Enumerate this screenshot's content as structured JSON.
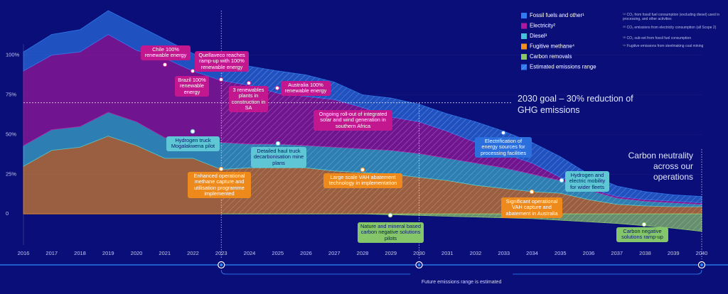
{
  "chart_data": {
    "type": "area",
    "stacked": true,
    "x": [
      2016,
      2017,
      2018,
      2019,
      2020,
      2021,
      2022,
      2023,
      2024,
      2025,
      2026,
      2027,
      2028,
      2029,
      2030,
      2031,
      2032,
      2033,
      2034,
      2035,
      2036,
      2037,
      2038,
      2039,
      2040
    ],
    "xlim": [
      2016,
      2040
    ],
    "xticks": [
      2016,
      2017,
      2018,
      2019,
      2020,
      2021,
      2022,
      2023,
      2024,
      2025,
      2026,
      2027,
      2028,
      2029,
      2030,
      2031,
      2032,
      2033,
      2034,
      2035,
      2036,
      2037,
      2038,
      2039,
      2040
    ],
    "ylim": [
      -12,
      128
    ],
    "yticks": [
      0,
      {
        "value": 25,
        "label": "25%"
      },
      {
        "value": 50,
        "label": "50%"
      },
      {
        "value": 75,
        "label": "75%"
      },
      {
        "value": 100,
        "label": "100%"
      }
    ],
    "series": [
      {
        "name": "Fossil fuels and other¹",
        "color": "#2f7bef",
        "values": [
          12,
          13,
          14,
          15,
          16,
          12,
          11,
          12,
          12,
          14,
          13.5,
          11,
          8,
          12,
          11,
          11,
          13,
          14,
          13,
          13,
          9,
          6.5,
          5,
          4,
          4
        ]
      },
      {
        "name": "Electricity²",
        "color": "#b0189e",
        "values": [
          47,
          47,
          47,
          49,
          45,
          50,
          43,
          39,
          37,
          32,
          31,
          30,
          26,
          21,
          20,
          17,
          13,
          9,
          7,
          2,
          1,
          1,
          1,
          1,
          1
        ]
      },
      {
        "name": "Diesel³",
        "color": "#43c4d6",
        "values": [
          13,
          13,
          13,
          15,
          15,
          13,
          12,
          17,
          15,
          15,
          14,
          15,
          15,
          15,
          15,
          14,
          14,
          13,
          11,
          8,
          6,
          4,
          3,
          2.5,
          1.5
        ]
      },
      {
        "name": "Fugitive methane⁴",
        "color": "#f3901e",
        "values": [
          30,
          40,
          42,
          49,
          43,
          35,
          35,
          28,
          29,
          29,
          29,
          27,
          26,
          25,
          23,
          21,
          18,
          16,
          14,
          13,
          9,
          6,
          5,
          4.5,
          4.5
        ]
      },
      {
        "name": "Carbon removals",
        "color": "#8cc66b",
        "values": [
          null,
          null,
          null,
          null,
          null,
          null,
          null,
          0,
          0,
          0,
          0,
          0,
          0,
          -0.5,
          -1,
          -1.5,
          -2,
          -2.5,
          -3,
          -4,
          -5,
          -6,
          -7.5,
          -9,
          -11
        ]
      }
    ],
    "goal_line": 70,
    "goal_text": "2030 goal – 30% reduction of GHG emissions",
    "neutrality_text": "Carbon neutrality across our operations",
    "estimate_label": "Estimated emissions range",
    "footer": "Future emissions range is estimated",
    "footnotes": [
      "⁽¹⁾ CO₂ from fossil fuel consumption (excluding diesel) used in processing, and other activities",
      "⁽²⁾ CO₂ emissions from electricity consumption (all Scope 2)",
      "⁽³⁾ CO₂ sub-set from fossil fuel consumption",
      "⁽⁴⁾ Fugitive emissions from steelmaking coal mining"
    ],
    "annotations": [
      "Chile 100% renewable energy",
      "Quellaveco reaches ramp-up with 100% renewable energy",
      "Brazil 100% renewable energy",
      "3 renewables plants in construction in SA",
      "Australia 100% renewable energy",
      "Ongoing roll-out of integrated solar and wind generation in southern Africa",
      "Hydrogen truck Mogalakwena pilot",
      "Detailed haul truck decarbonisation mine plans",
      "Electrification of energy sources for processing facilities",
      "Hydrogen and electric mobility for wider fleets",
      "Enhanced operational methane capture and utilisation programme implemented",
      "Large scale VAH abatement technology in implementation",
      "Significant operational VAH capture and abatement in Australia",
      "Nature and mineral based carbon negative solutions pilots",
      "Carbon negative solutions ramp-up"
    ]
  }
}
